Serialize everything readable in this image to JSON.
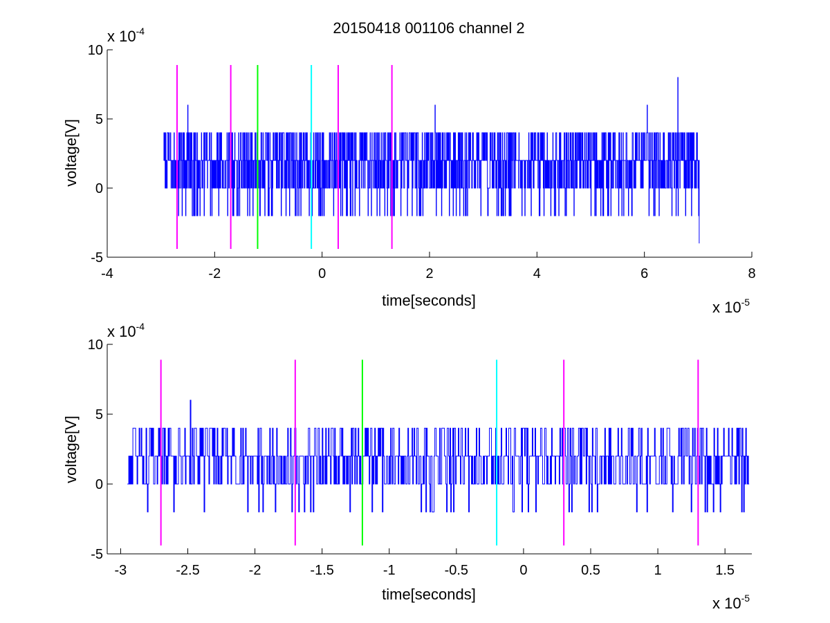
{
  "figure": {
    "title": "20150418 001106 channel 2"
  },
  "colors": {
    "signal": "#0000ff",
    "magenta": "#ff00ff",
    "green": "#00ff00",
    "cyan": "#00ffff",
    "axis": "#000000",
    "background": "#ffffff"
  },
  "chart_data": [
    {
      "type": "line",
      "title": "20150418 001106 channel 2",
      "xlabel": "time[seconds]",
      "ylabel": "voltage[V]",
      "x_multiplier": "x 10",
      "x_multiplier_exp": "-5",
      "y_multiplier": "x 10",
      "y_multiplier_exp": "-4",
      "xlim": [
        -4,
        8
      ],
      "ylim": [
        -5,
        10
      ],
      "xticks": [
        -4,
        -2,
        0,
        2,
        4,
        6,
        8
      ],
      "xtick_labels": [
        "-4",
        "-2",
        "0",
        "2",
        "4",
        "6",
        "8"
      ],
      "yticks": [
        -5,
        0,
        5,
        10
      ],
      "ytick_labels": [
        "-5",
        "0",
        "5",
        "10"
      ],
      "grid": false,
      "series": [
        {
          "x_start": -2.95,
          "x_end": 7.02,
          "levels": [
            -4,
            -2,
            0,
            2,
            4,
            6,
            8
          ],
          "baseline": 2,
          "spikes": [
            {
              "x": -2.5,
              "y": 6
            },
            {
              "x": 2.1,
              "y": 6
            },
            {
              "x": 6.05,
              "y": 6
            },
            {
              "x": 6.62,
              "y": 8
            },
            {
              "x": 7.02,
              "y": -4
            }
          ]
        }
      ],
      "markers": [
        {
          "x": -2.7,
          "color": "magenta",
          "y0": -4.4,
          "y1": 8.9
        },
        {
          "x": -1.7,
          "color": "magenta",
          "y0": -4.4,
          "y1": 8.9
        },
        {
          "x": -1.2,
          "color": "green",
          "y0": -4.4,
          "y1": 8.9
        },
        {
          "x": -0.2,
          "color": "cyan",
          "y0": -4.4,
          "y1": 8.9
        },
        {
          "x": 0.3,
          "color": "magenta",
          "y0": -4.4,
          "y1": 8.9
        },
        {
          "x": 1.3,
          "color": "magenta",
          "y0": -4.4,
          "y1": 8.9
        }
      ]
    },
    {
      "type": "line",
      "title": "",
      "xlabel": "time[seconds]",
      "ylabel": "voltage[V]",
      "x_multiplier": "x 10",
      "x_multiplier_exp": "-5",
      "y_multiplier": "x 10",
      "y_multiplier_exp": "-4",
      "xlim": [
        -3.1,
        1.7
      ],
      "ylim": [
        -5,
        10
      ],
      "xticks": [
        -3,
        -2.5,
        -2,
        -1.5,
        -1,
        -0.5,
        0,
        0.5,
        1,
        1.5
      ],
      "xtick_labels": [
        "-3",
        "-2.5",
        "-2",
        "-1.5",
        "-1",
        "-0.5",
        "0",
        "0.5",
        "1",
        "1.5"
      ],
      "yticks": [
        -5,
        0,
        5,
        10
      ],
      "ytick_labels": [
        "-5",
        "0",
        "5",
        "10"
      ],
      "grid": false,
      "series": [
        {
          "x_start": -2.95,
          "x_end": 1.68,
          "levels": [
            -2,
            0,
            2,
            4,
            6
          ],
          "baseline": 2,
          "spikes": [
            {
              "x": -2.48,
              "y": 6
            },
            {
              "x": -2.8,
              "y": -2
            },
            {
              "x": -2.38,
              "y": -2
            },
            {
              "x": -1.85,
              "y": -2
            },
            {
              "x": -1.05,
              "y": -2
            },
            {
              "x": -0.08,
              "y": -2
            },
            {
              "x": 0.55,
              "y": -2
            },
            {
              "x": 0.92,
              "y": -2
            },
            {
              "x": 1.25,
              "y": -2
            }
          ]
        }
      ],
      "markers": [
        {
          "x": -2.7,
          "color": "magenta",
          "y0": -4.4,
          "y1": 8.9
        },
        {
          "x": -1.7,
          "color": "magenta",
          "y0": -4.4,
          "y1": 8.9
        },
        {
          "x": -1.2,
          "color": "green",
          "y0": -4.4,
          "y1": 8.9
        },
        {
          "x": -0.2,
          "color": "cyan",
          "y0": -4.4,
          "y1": 8.9
        },
        {
          "x": 0.3,
          "color": "magenta",
          "y0": -4.4,
          "y1": 8.9
        },
        {
          "x": 1.3,
          "color": "magenta",
          "y0": -4.4,
          "y1": 8.9
        }
      ]
    }
  ]
}
